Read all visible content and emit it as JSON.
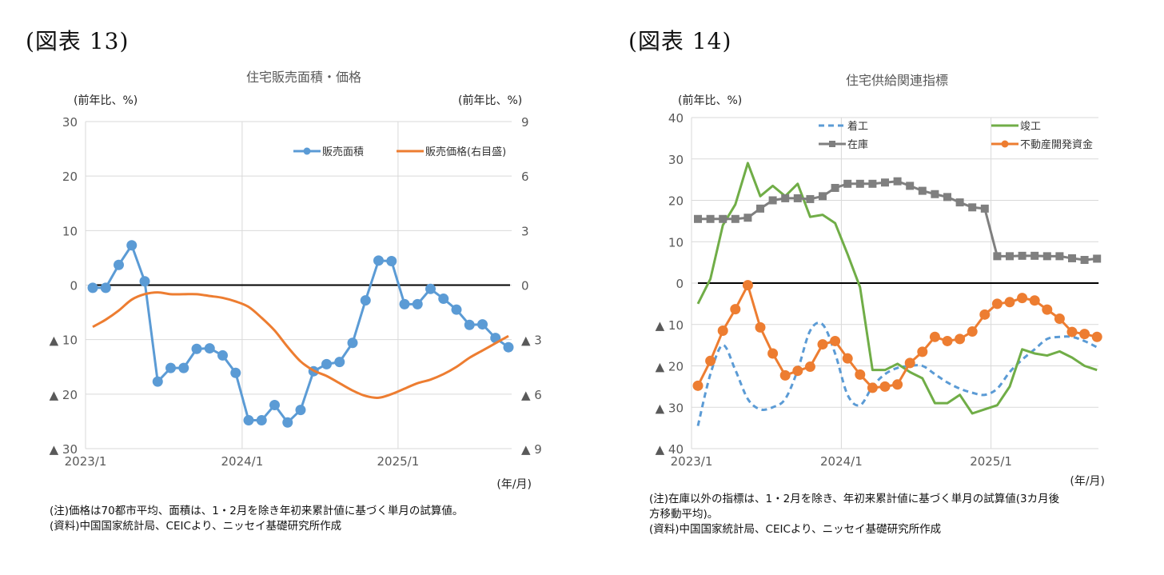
{
  "figures": [
    {
      "label": "(図表 13)"
    },
    {
      "label": "(図表 14)"
    }
  ],
  "chart_data": [
    {
      "type": "line",
      "title": "住宅販売面積・価格",
      "ylabel": "(前年比、%)",
      "ylabel_right": "(前年比、%)",
      "xlabel": "(年/月)",
      "x_ticks": [
        "2023/1",
        "2024/1",
        "2025/1"
      ],
      "x": [
        "2023/1",
        "2023/2",
        "2023/3",
        "2023/4",
        "2023/5",
        "2023/6",
        "2023/7",
        "2023/8",
        "2023/9",
        "2023/10",
        "2023/11",
        "2023/12",
        "2024/1",
        "2024/2",
        "2024/3",
        "2024/4",
        "2024/5",
        "2024/6",
        "2024/7",
        "2024/8",
        "2024/9",
        "2024/10",
        "2024/11",
        "2024/12",
        "2025/1",
        "2025/2",
        "2025/3",
        "2025/4",
        "2025/5",
        "2025/6",
        "2025/7",
        "2025/8",
        "2025/9"
      ],
      "ylim": [
        -30,
        30
      ],
      "ylim_right": [
        -9,
        9
      ],
      "y_ticks": [
        "30",
        "20",
        "10",
        "0",
        "▲ 10",
        "▲ 20",
        "▲ 30"
      ],
      "y_ticks_right": [
        "9",
        "6",
        "3",
        "0",
        "▲ 3",
        "▲ 6",
        "▲ 9"
      ],
      "grid": true,
      "legend_position": "top-right",
      "series": [
        {
          "name": "販売面積",
          "axis": "left",
          "color": "#5b9bd5",
          "marker": "circle",
          "values": [
            -0.5,
            -0.5,
            3.7,
            7.3,
            0.7,
            -17.7,
            -15.2,
            -15.2,
            -11.7,
            -11.6,
            -12.9,
            -16.1,
            -24.8,
            -24.8,
            -22.0,
            -25.2,
            -22.9,
            -15.8,
            -14.5,
            -14.1,
            -10.6,
            -2.8,
            4.5,
            4.4,
            -3.5,
            -3.5,
            -0.7,
            -2.5,
            -4.5,
            -7.3,
            -7.2,
            -9.7,
            -11.4
          ]
        },
        {
          "name": "販売価格(右目盛)",
          "axis": "right",
          "color": "#ed7d31",
          "marker": "none",
          "values": [
            -2.3,
            -1.9,
            -1.4,
            -0.8,
            -0.5,
            -0.4,
            -0.5,
            -0.5,
            -0.5,
            -0.6,
            -0.7,
            -0.9,
            -1.2,
            -1.8,
            -2.5,
            -3.4,
            -4.2,
            -4.7,
            -5.0,
            -5.4,
            -5.8,
            -6.1,
            -6.2,
            -6.0,
            -5.7,
            -5.4,
            -5.2,
            -4.9,
            -4.5,
            -4.0,
            -3.6,
            -3.2,
            -2.8
          ]
        }
      ]
    },
    {
      "type": "line",
      "title": "住宅供給関連指標",
      "ylabel": "(前年比、%)",
      "xlabel": "(年/月)",
      "x_ticks": [
        "2023/1",
        "2024/1",
        "2025/1"
      ],
      "x": [
        "2023/1",
        "2023/2",
        "2023/3",
        "2023/4",
        "2023/5",
        "2023/6",
        "2023/7",
        "2023/8",
        "2023/9",
        "2023/10",
        "2023/11",
        "2023/12",
        "2024/1",
        "2024/2",
        "2024/3",
        "2024/4",
        "2024/5",
        "2024/6",
        "2024/7",
        "2024/8",
        "2024/9",
        "2024/10",
        "2024/11",
        "2024/12",
        "2025/1",
        "2025/2",
        "2025/3",
        "2025/4",
        "2025/5",
        "2025/6",
        "2025/7",
        "2025/8",
        "2025/9"
      ],
      "ylim": [
        -40,
        40
      ],
      "y_ticks": [
        "40",
        "30",
        "20",
        "10",
        "0",
        "▲ 10",
        "▲ 20",
        "▲ 30",
        "▲ 40"
      ],
      "grid": true,
      "legend_position": "top-right",
      "series": [
        {
          "name": "着工",
          "color": "#5b9bd5",
          "style": "dashed",
          "marker": "none",
          "values": [
            -34.5,
            -22,
            -15,
            -21,
            -28,
            -30.5,
            -30,
            -28,
            -21,
            -11.5,
            -10,
            -17,
            -27,
            -29.5,
            -25,
            -22,
            -20.5,
            -20,
            -20,
            -22,
            -24,
            -25.5,
            -26.5,
            -27,
            -25.5,
            -21.5,
            -18.5,
            -16,
            -13.5,
            -13,
            -13,
            -14,
            -15.5
          ]
        },
        {
          "name": "竣工",
          "color": "#70ad47",
          "style": "solid",
          "marker": "none",
          "values": [
            -5,
            1,
            14,
            19,
            29,
            21,
            23.5,
            21,
            24,
            16,
            16.5,
            14.5,
            7,
            -1,
            -21,
            -21,
            -19.5,
            -21.5,
            -23,
            -29,
            -29,
            -27,
            -31.5,
            -30.5,
            -29.5,
            -25,
            -16,
            -17,
            -17.5,
            -16.5,
            -18,
            -20,
            -21
          ]
        },
        {
          "name": "在庫",
          "color": "#7f7f7f",
          "style": "solid",
          "marker": "square",
          "values": [
            15.5,
            15.5,
            15.5,
            15.5,
            15.8,
            18,
            20,
            20.5,
            20.5,
            20.3,
            21,
            23,
            24,
            24,
            24,
            24.3,
            24.6,
            23.5,
            22.3,
            21.5,
            20.8,
            19.5,
            18.3,
            18,
            6.5,
            6.5,
            6.6,
            6.6,
            6.5,
            6.5,
            6,
            5.6,
            5.9
          ]
        },
        {
          "name": "不動産開発資金",
          "color": "#ed7d31",
          "style": "solid",
          "marker": "circle",
          "values": [
            -24.8,
            -18.8,
            -11.5,
            -6.3,
            -0.5,
            -10.7,
            -17,
            -22.3,
            -21.2,
            -20.2,
            -14.8,
            -14,
            -18.2,
            -22.1,
            -25.3,
            -25,
            -24.5,
            -19.3,
            -16.6,
            -13,
            -14,
            -13.5,
            -11.7,
            -7.6,
            -5,
            -4.6,
            -3.6,
            -4.2,
            -6.4,
            -8.6,
            -11.8,
            -12.3,
            -13
          ]
        }
      ]
    }
  ],
  "notes": [
    {
      "lines": [
        "(注)価格は70都市平均、面積は、1・2月を除き年初来累計値に基づく単月の試算値。",
        "(資料)中国国家統計局、CEICより、ニッセイ基礎研究所作成"
      ]
    },
    {
      "lines": [
        "(注)在庫以外の指標は、1・2月を除き、年初来累計値に基づく単月の試算値(3カ月後",
        "方移動平均)。",
        "(資料)中国国家統計局、CEICより、ニッセイ基礎研究所作成"
      ]
    }
  ]
}
